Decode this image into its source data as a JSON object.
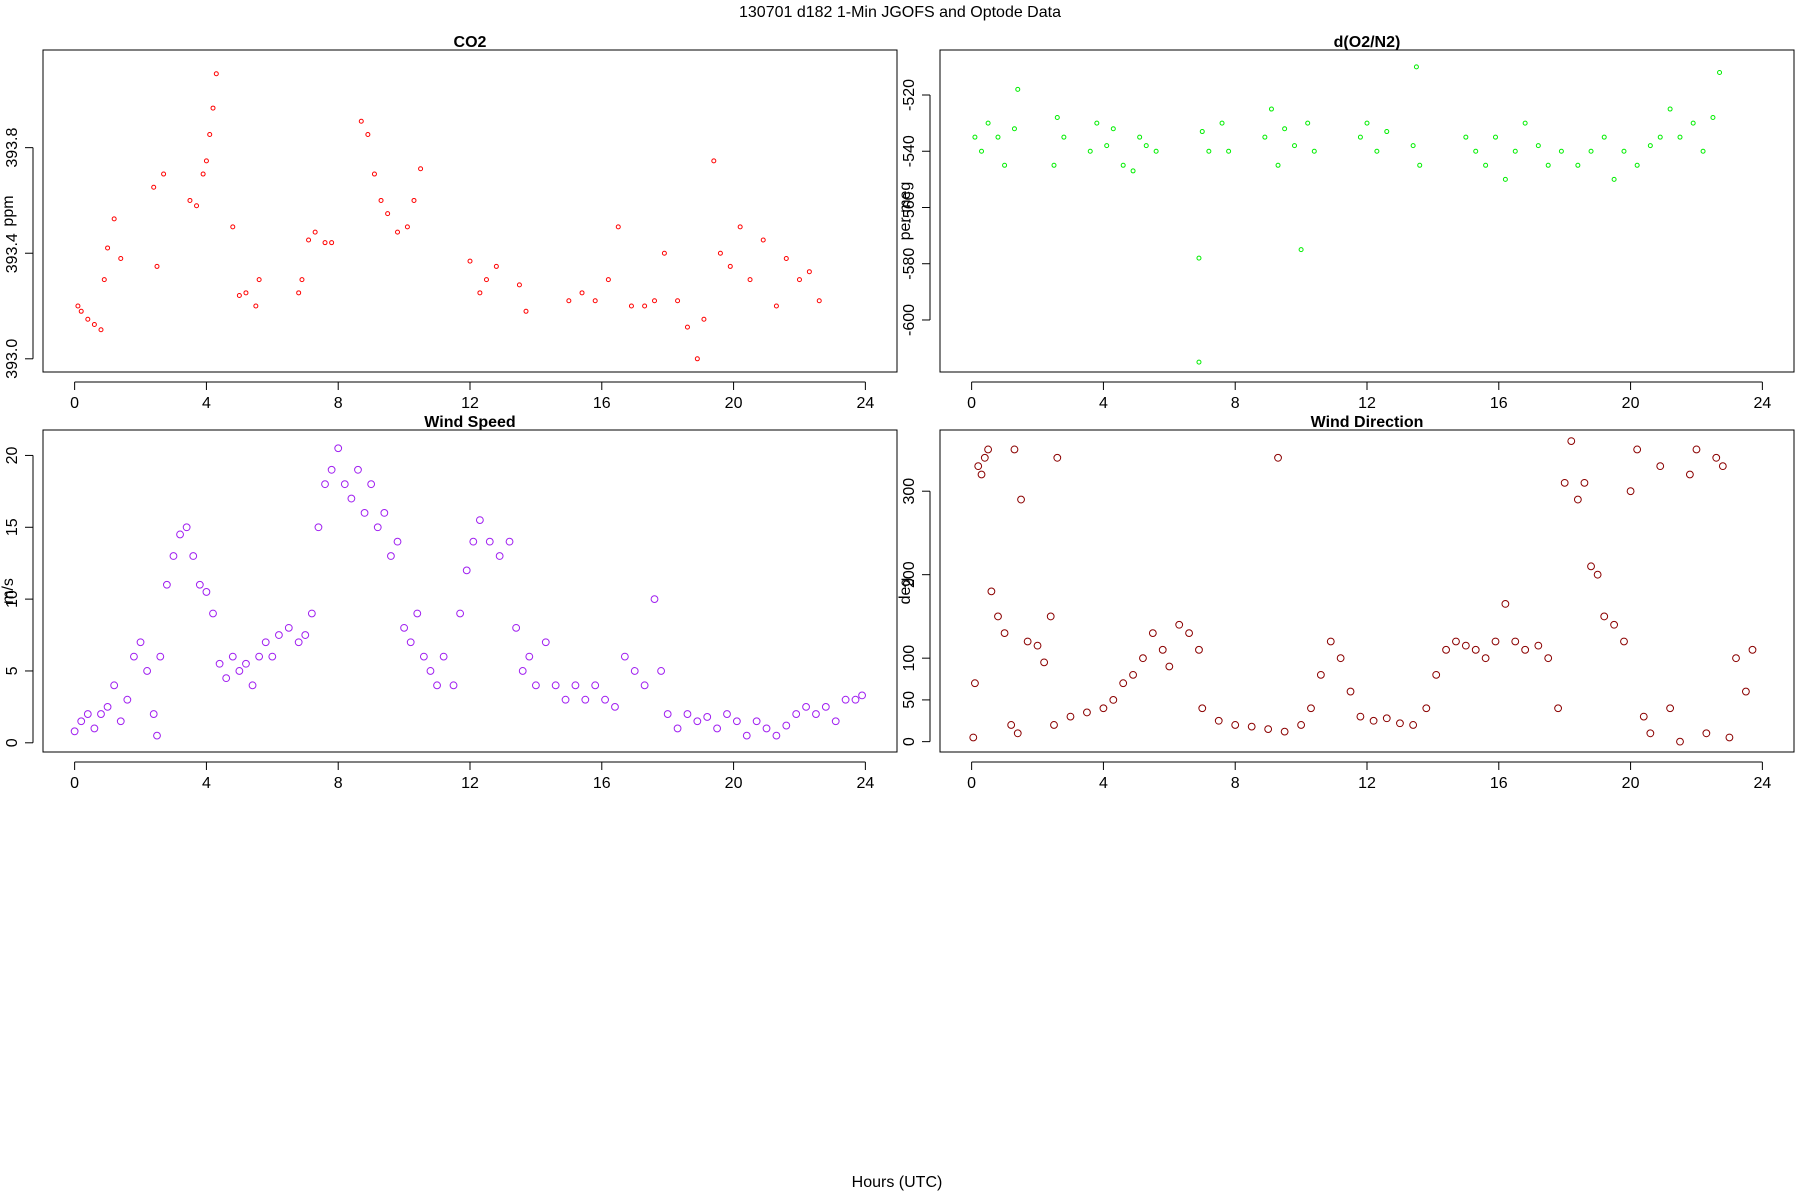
{
  "title": "130701   d182   1-Min  JGOFS and Optode Data",
  "xlabel": "Hours (UTC)",
  "chart_data": [
    {
      "type": "scatter",
      "title": "CO2",
      "ylabel": "ppm",
      "color": "#ff0000",
      "xlim": [
        -0.96,
        24.96
      ],
      "xticks": [
        0,
        4,
        8,
        12,
        16,
        20,
        24
      ],
      "ylim": [
        392.95,
        394.17
      ],
      "yticks": [
        {
          "value": 393,
          "label": "393.0"
        },
        393.4,
        393.8
      ],
      "x": [
        0.1,
        0.2,
        0.4,
        0.6,
        0.8,
        0.9,
        1.0,
        1.2,
        1.4,
        2.4,
        2.5,
        2.7,
        3.5,
        3.7,
        3.9,
        4.0,
        4.1,
        4.2,
        4.3,
        4.8,
        5.0,
        5.2,
        5.5,
        5.6,
        6.8,
        6.9,
        7.1,
        7.3,
        7.6,
        7.8,
        8.7,
        8.9,
        9.1,
        9.3,
        9.5,
        9.8,
        10.1,
        10.3,
        10.5,
        12.0,
        12.3,
        12.5,
        12.8,
        13.5,
        13.7,
        15.0,
        15.4,
        15.8,
        16.2,
        16.5,
        16.9,
        17.3,
        17.6,
        17.9,
        18.3,
        18.6,
        18.9,
        19.1,
        19.4,
        19.6,
        19.9,
        20.2,
        20.5,
        20.9,
        21.3,
        21.6,
        22.0,
        22.3,
        22.6
      ],
      "y": [
        393.2,
        393.18,
        393.15,
        393.13,
        393.11,
        393.3,
        393.42,
        393.53,
        393.38,
        393.65,
        393.35,
        393.7,
        393.6,
        393.58,
        393.7,
        393.75,
        393.85,
        393.95,
        394.08,
        393.5,
        393.24,
        393.25,
        393.2,
        393.3,
        393.25,
        393.3,
        393.45,
        393.48,
        393.44,
        393.44,
        393.9,
        393.85,
        393.7,
        393.6,
        393.55,
        393.48,
        393.5,
        393.6,
        393.72,
        393.37,
        393.25,
        393.3,
        393.35,
        393.28,
        393.18,
        393.22,
        393.25,
        393.22,
        393.3,
        393.5,
        393.2,
        393.2,
        393.22,
        393.4,
        393.22,
        393.12,
        393.0,
        393.15,
        393.75,
        393.4,
        393.35,
        393.5,
        393.3,
        393.45,
        393.2,
        393.38,
        393.3,
        393.33,
        393.22
      ]
    },
    {
      "type": "scatter",
      "title": "d(O2/N2)",
      "ylabel": "per meg",
      "color": "#00ee00",
      "xlim": [
        -0.96,
        24.96
      ],
      "xticks": [
        0,
        4,
        8,
        12,
        16,
        20,
        24
      ],
      "ylim": [
        -618.5,
        -504
      ],
      "yticks": [
        -600,
        -580,
        -560,
        -540,
        -520
      ],
      "x": [
        0.1,
        0.3,
        0.5,
        0.8,
        1.0,
        1.3,
        1.4,
        2.5,
        2.6,
        2.8,
        3.6,
        3.8,
        4.1,
        4.3,
        4.6,
        4.9,
        5.1,
        5.3,
        5.6,
        6.9,
        6.9,
        7.0,
        7.2,
        7.6,
        7.8,
        8.9,
        9.1,
        9.3,
        9.5,
        9.8,
        10.0,
        10.2,
        10.4,
        11.8,
        12.0,
        12.3,
        12.6,
        13.4,
        13.5,
        13.6,
        15.0,
        15.3,
        15.6,
        15.9,
        16.2,
        16.5,
        16.8,
        17.2,
        17.5,
        17.9,
        18.4,
        18.8,
        19.2,
        19.5,
        19.8,
        20.2,
        20.6,
        20.9,
        21.2,
        21.5,
        21.9,
        22.2,
        22.5,
        22.7
      ],
      "y": [
        -535,
        -540,
        -530,
        -535,
        -545,
        -532,
        -518,
        -545,
        -528,
        -535,
        -540,
        -530,
        -538,
        -532,
        -545,
        -547,
        -535,
        -538,
        -540,
        -578,
        -615,
        -533,
        -540,
        -530,
        -540,
        -535,
        -525,
        -545,
        -532,
        -538,
        -575,
        -530,
        -540,
        -535,
        -530,
        -540,
        -533,
        -538,
        -510,
        -545,
        -535,
        -540,
        -545,
        -535,
        -550,
        -540,
        -530,
        -538,
        -545,
        -540,
        -545,
        -540,
        -535,
        -550,
        -540,
        -545,
        -538,
        -535,
        -525,
        -535,
        -530,
        -540,
        -528,
        -512
      ]
    },
    {
      "type": "scatter",
      "title": "Wind Speed",
      "ylabel": "m/s",
      "color": "#a020f0",
      "xlim": [
        -0.96,
        24.96
      ],
      "xticks": [
        0,
        4,
        8,
        12,
        16,
        20,
        24
      ],
      "ylim": [
        -0.64,
        21.77
      ],
      "yticks": [
        0,
        5,
        10,
        15,
        20
      ],
      "x": [
        0,
        0.2,
        0.4,
        0.6,
        0.8,
        1.0,
        1.2,
        1.4,
        1.6,
        1.8,
        2.0,
        2.2,
        2.4,
        2.5,
        2.6,
        2.8,
        3.0,
        3.2,
        3.4,
        3.6,
        3.8,
        4.0,
        4.2,
        4.4,
        4.6,
        4.8,
        5.0,
        5.2,
        5.4,
        5.6,
        5.8,
        6.0,
        6.2,
        6.5,
        6.8,
        7.0,
        7.2,
        7.4,
        7.6,
        7.8,
        8.0,
        8.2,
        8.4,
        8.6,
        8.8,
        9.0,
        9.2,
        9.4,
        9.6,
        9.8,
        10.0,
        10.2,
        10.4,
        10.6,
        10.8,
        11.0,
        11.2,
        11.5,
        11.7,
        11.9,
        12.1,
        12.3,
        12.6,
        12.9,
        13.2,
        13.4,
        13.6,
        13.8,
        14.0,
        14.3,
        14.6,
        14.9,
        15.2,
        15.5,
        15.8,
        16.1,
        16.4,
        16.7,
        17.0,
        17.3,
        17.6,
        17.8,
        18.0,
        18.3,
        18.6,
        18.9,
        19.2,
        19.5,
        19.8,
        20.1,
        20.4,
        20.7,
        21.0,
        21.3,
        21.6,
        21.9,
        22.2,
        22.5,
        22.8,
        23.1,
        23.4,
        23.7,
        23.9
      ],
      "y": [
        0.8,
        1.5,
        2,
        1,
        2,
        2.5,
        4,
        1.5,
        3,
        6,
        7,
        5,
        2,
        0.5,
        6,
        11,
        13,
        14.5,
        15,
        13,
        11,
        10.5,
        9,
        5.5,
        4.5,
        6,
        5,
        5.5,
        4,
        6,
        7,
        6,
        7.5,
        8,
        7,
        7.5,
        9,
        15,
        18,
        19,
        20.5,
        18,
        17,
        19,
        16,
        18,
        15,
        16,
        13,
        14,
        8,
        7,
        9,
        6,
        5,
        4,
        6,
        4,
        9,
        12,
        14,
        15.5,
        14,
        13,
        14,
        8,
        5,
        6,
        4,
        7,
        4,
        3,
        4,
        3,
        4,
        3,
        2.5,
        6,
        5,
        4,
        10,
        5,
        2,
        1,
        2,
        1.5,
        1.8,
        1,
        2,
        1.5,
        0.5,
        1.5,
        1,
        0.5,
        1.2,
        2,
        2.5,
        2,
        2.5,
        1.5,
        3,
        3,
        3.3
      ]
    },
    {
      "type": "scatter",
      "title": "Wind Direction",
      "ylabel": "deg",
      "color": "#8b0000",
      "xlim": [
        -0.96,
        24.96
      ],
      "xticks": [
        0,
        4,
        8,
        12,
        16,
        20,
        24
      ],
      "ylim": [
        -12.4,
        373.3
      ],
      "yticks": [
        0,
        50,
        100,
        200,
        300
      ],
      "x": [
        0.05,
        0.1,
        0.2,
        0.3,
        0.4,
        0.5,
        0.6,
        0.8,
        1.0,
        1.2,
        1.3,
        1.4,
        1.5,
        1.7,
        2.0,
        2.2,
        2.4,
        2.5,
        2.6,
        3.0,
        3.5,
        4.0,
        4.3,
        4.6,
        4.9,
        5.2,
        5.5,
        5.8,
        6.0,
        6.3,
        6.6,
        6.9,
        7.0,
        7.5,
        8.0,
        8.5,
        9.0,
        9.3,
        9.5,
        10.0,
        10.3,
        10.6,
        10.9,
        11.2,
        11.5,
        11.8,
        12.2,
        12.6,
        13.0,
        13.4,
        13.8,
        14.1,
        14.4,
        14.7,
        15.0,
        15.3,
        15.6,
        15.9,
        16.2,
        16.5,
        16.8,
        17.2,
        17.5,
        17.8,
        18.0,
        18.2,
        18.4,
        18.6,
        18.8,
        19.0,
        19.2,
        19.5,
        19.8,
        20.0,
        20.2,
        20.4,
        20.6,
        20.9,
        21.2,
        21.5,
        21.8,
        22.0,
        22.3,
        22.6,
        22.8,
        23.0,
        23.2,
        23.5,
        23.7
      ],
      "y": [
        5,
        70,
        330,
        320,
        340,
        350,
        180,
        150,
        130,
        20,
        350,
        10,
        290,
        120,
        115,
        95,
        150,
        20,
        340,
        30,
        35,
        40,
        50,
        70,
        80,
        100,
        130,
        110,
        90,
        140,
        130,
        110,
        40,
        25,
        20,
        18,
        15,
        340,
        12,
        20,
        40,
        80,
        120,
        100,
        60,
        30,
        25,
        28,
        22,
        20,
        40,
        80,
        110,
        120,
        115,
        110,
        100,
        120,
        165,
        120,
        110,
        115,
        100,
        40,
        310,
        360,
        290,
        310,
        210,
        200,
        150,
        140,
        120,
        300,
        350,
        30,
        10,
        330,
        40,
        0,
        320,
        350,
        10,
        340,
        330,
        5,
        100,
        60,
        110
      ]
    }
  ]
}
